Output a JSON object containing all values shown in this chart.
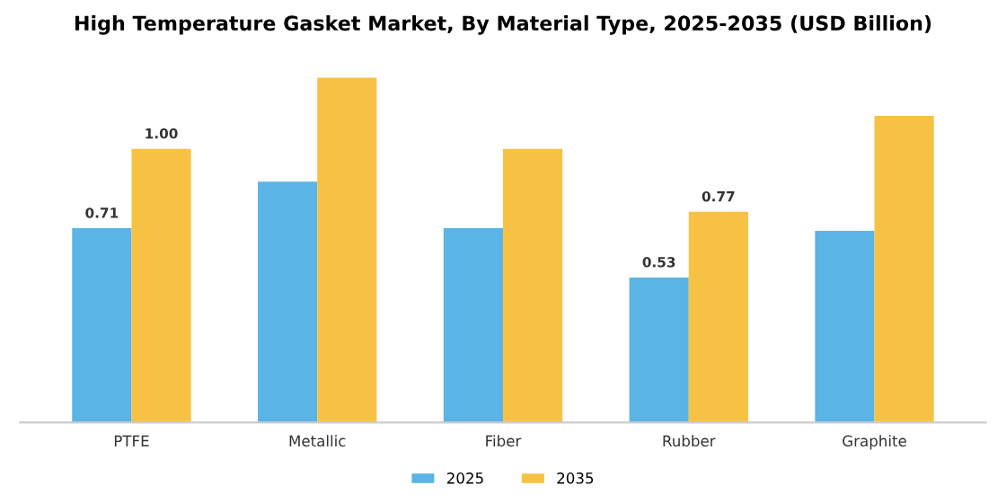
{
  "chart_data": {
    "type": "bar",
    "title": "High Temperature Gasket Market, By Material Type, 2025-2035 (USD Billion)",
    "categories": [
      "PTFE",
      "Metallic",
      "Fiber",
      "Rubber",
      "Graphite"
    ],
    "series": [
      {
        "name": "2025",
        "color": "#5ab4e5",
        "values": [
          0.71,
          0.88,
          0.71,
          0.53,
          0.7
        ],
        "value_labels": [
          "0.71",
          null,
          null,
          "0.53",
          null
        ]
      },
      {
        "name": "2035",
        "color": "#f7c244",
        "values": [
          1.0,
          1.26,
          1.0,
          0.77,
          1.12
        ],
        "value_labels": [
          "1.00",
          null,
          null,
          "0.77",
          null
        ]
      }
    ],
    "legend": "bottom",
    "grid": false,
    "tick_labels": "x"
  }
}
